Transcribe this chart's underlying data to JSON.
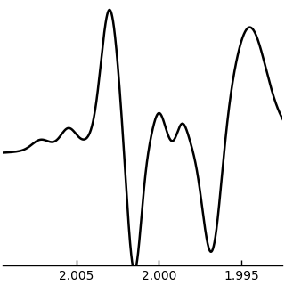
{
  "x_ticks": [
    2005,
    2000,
    1995
  ],
  "x_tick_labels": [
    "2.005",
    "2.000",
    "1.995"
  ],
  "line_color": "#000000",
  "line_width": 1.8,
  "background_color": "#ffffff",
  "figsize": [
    3.2,
    3.2
  ],
  "dpi": 100,
  "xlim": [
    2009.5,
    1992.5
  ],
  "ylim": [
    -1.0,
    1.1
  ]
}
